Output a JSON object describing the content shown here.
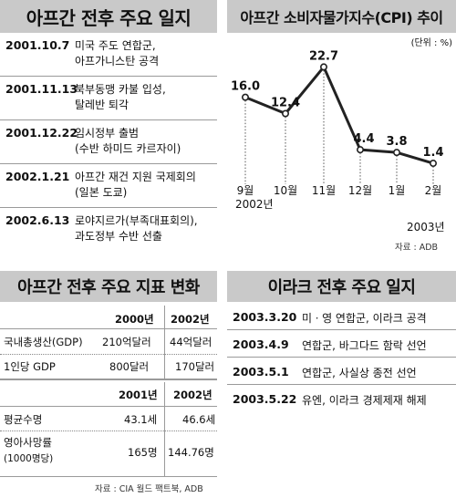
{
  "timeline": {
    "title": "아프간 전후 주요 일지",
    "events": [
      {
        "date": "2001.10.7",
        "lines": [
          "미국 주도 연합군,",
          "아프가니스탄 공격"
        ]
      },
      {
        "date": "2001.11.13",
        "lines": [
          "북부동맹 카불 입성,",
          "탈레반 퇴각"
        ]
      },
      {
        "date": "2001.12.22",
        "lines": [
          "임시정부 출범",
          "(수반 하미드 카르자이)"
        ]
      },
      {
        "date": "2002.1.21",
        "lines": [
          "아프간 재건 지원 국제회의",
          "(일본 도쿄)"
        ]
      },
      {
        "date": "2002.6.13",
        "lines": [
          "로야지르가(부족대표회의),",
          "과도정부 수반 선출"
        ]
      }
    ]
  },
  "cpi": {
    "title": "아프간 소비자물가지수(CPI) 추이",
    "unit": "(단위 : %)",
    "source": "자료 : ADB",
    "year_labels": [
      "2002년",
      "2003년"
    ],
    "value_labels": [
      "16.0",
      "12.4",
      "22.7",
      "4.4",
      "3.8",
      "1.4"
    ]
  },
  "chart_data": {
    "type": "line",
    "title": "아프간 소비자물가지수(CPI) 추이",
    "categories": [
      "9월",
      "10월",
      "11월",
      "12월",
      "1월",
      "2월"
    ],
    "values": [
      16.0,
      12.4,
      22.7,
      4.4,
      3.8,
      1.4
    ],
    "xlabel": "",
    "ylabel": "",
    "ylim": [
      0,
      25
    ],
    "grid": false
  },
  "indicators": {
    "title": "아프간 전후 주요 지표 변화",
    "table1": {
      "headers": [
        "2000년",
        "2002년"
      ],
      "rows": [
        {
          "label": "국내총생산(GDP)",
          "values": [
            "210억달러",
            "44억달러"
          ]
        },
        {
          "label": "1인당 GDP",
          "values": [
            "800달러",
            "170달러"
          ]
        }
      ]
    },
    "table2": {
      "headers": [
        "2001년",
        "2002년"
      ],
      "rows": [
        {
          "label": "평균수명",
          "values": [
            "43.1세",
            "46.6세"
          ]
        },
        {
          "label": "영아사망률",
          "sublabel": "(1000명당)",
          "values": [
            "165명",
            "144.76명"
          ]
        }
      ]
    },
    "source": "자료 : CIA 월드 팩트북, ADB"
  },
  "iraq": {
    "title": "이라크 전후 주요 일지",
    "events": [
      {
        "date": "2003.3.20",
        "text": "미ㆍ영 연합군, 이라크 공격"
      },
      {
        "date": "2003.4.9",
        "text": "연합군, 바그다드 함락 선언"
      },
      {
        "date": "2003.5.1",
        "text": "연합군, 사실상 종전 선언"
      },
      {
        "date": "2003.5.22",
        "text": "유엔, 이라크 경제제재 해제"
      }
    ]
  }
}
